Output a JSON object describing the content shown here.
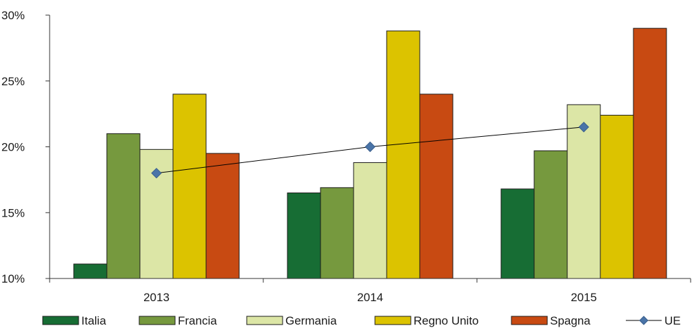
{
  "chart_data": {
    "type": "bar",
    "categories": [
      "2013",
      "2014",
      "2015"
    ],
    "series": [
      {
        "name": "Italia",
        "values": [
          11.1,
          16.5,
          16.8
        ],
        "color": "#176d34"
      },
      {
        "name": "Francia",
        "values": [
          21.0,
          16.9,
          19.7
        ],
        "color": "#76993e"
      },
      {
        "name": "Germania",
        "values": [
          19.8,
          18.8,
          23.2
        ],
        "color": "#dce6a6"
      },
      {
        "name": "Regno Unito",
        "values": [
          24.0,
          28.8,
          22.4
        ],
        "color": "#dcc300"
      },
      {
        "name": "Spagna",
        "values": [
          19.5,
          24.0,
          29.0
        ],
        "color": "#c84a12"
      }
    ],
    "line_series": {
      "name": "UE",
      "values": [
        18.0,
        20.0,
        21.5
      ],
      "type": "line",
      "color": "#4a74a8"
    },
    "ylim": [
      10,
      30
    ],
    "yticks": [
      "10%",
      "15%",
      "20%",
      "25%",
      "30%"
    ],
    "ytick_values": [
      10,
      15,
      20,
      25,
      30
    ],
    "title": "",
    "xlabel": "",
    "ylabel": "",
    "grid": false,
    "legend": "bottom"
  }
}
